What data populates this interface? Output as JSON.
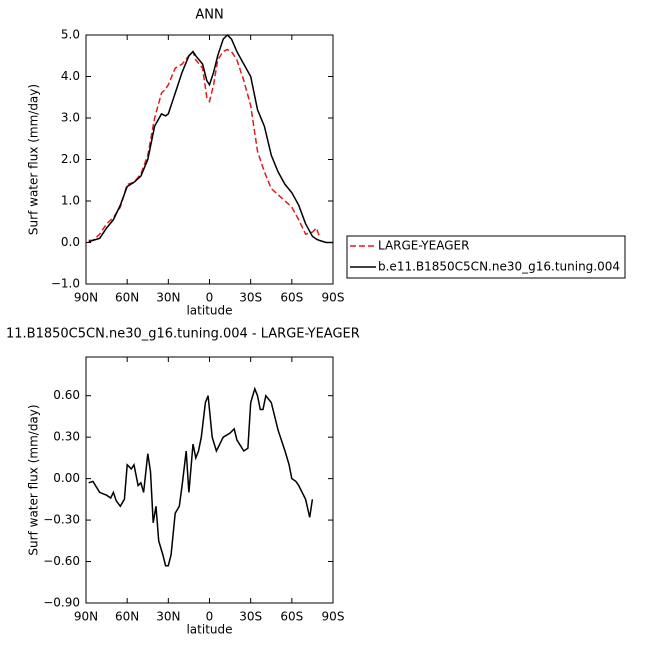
{
  "chart_data": [
    {
      "type": "line",
      "title": "ANN",
      "x_label": "latitude",
      "y_label": "Surf water flux (mm/day)",
      "x": [
        88,
        85,
        80,
        75,
        70,
        65,
        60,
        55,
        50,
        45,
        40,
        35,
        32,
        30,
        25,
        20,
        15,
        12,
        10,
        5,
        2,
        0,
        -3,
        -6,
        -10,
        -13,
        -16,
        -20,
        -25,
        -30,
        -35,
        -40,
        -45,
        -50,
        -55,
        -60,
        -65,
        -70,
        -75,
        -78,
        -80,
        -85,
        -90
      ],
      "series": [
        {
          "name": "LARGE-YEAGER",
          "color": "#e31a1c",
          "linestyle": "dashed",
          "values": [
            0.05,
            0.05,
            0.2,
            0.45,
            0.6,
            0.85,
            1.4,
            1.45,
            1.65,
            2.1,
            3.0,
            3.6,
            3.7,
            3.8,
            4.2,
            4.3,
            4.5,
            4.6,
            4.4,
            4.2,
            3.5,
            3.4,
            3.8,
            4.4,
            4.6,
            4.65,
            4.6,
            4.4,
            3.9,
            3.3,
            2.2,
            1.7,
            1.3,
            1.15,
            1.0,
            0.85,
            0.55,
            0.2,
            0.25,
            0.35,
            0.15,
            null,
            null
          ]
        },
        {
          "name": "b.e11.B1850C5CN.ne30_g16.tuning.004",
          "color": "#000000",
          "linestyle": "solid",
          "values": [
            0.02,
            0.05,
            0.1,
            0.35,
            0.55,
            0.9,
            1.35,
            1.45,
            1.6,
            2.0,
            2.8,
            3.1,
            3.05,
            3.1,
            3.6,
            4.1,
            4.5,
            4.6,
            4.5,
            4.3,
            3.9,
            3.8,
            4.1,
            4.5,
            4.9,
            5.0,
            4.9,
            4.6,
            4.3,
            4.0,
            3.2,
            2.8,
            2.1,
            1.7,
            1.4,
            1.2,
            0.9,
            0.45,
            0.15,
            0.08,
            0.05,
            0.0,
            0.0
          ]
        }
      ],
      "xlim": [
        90,
        -90
      ],
      "xticks": [
        {
          "value": 90,
          "label": "90N"
        },
        {
          "value": 60,
          "label": "60N"
        },
        {
          "value": 30,
          "label": "30N"
        },
        0,
        {
          "value": -30,
          "label": "30S"
        },
        {
          "value": -60,
          "label": "60S"
        },
        {
          "value": -90,
          "label": "90S"
        }
      ],
      "ylim": [
        -1,
        5
      ],
      "yticks": [
        {
          "value": -1,
          "label": "−1.0"
        },
        {
          "value": 0,
          "label": "0.0"
        },
        {
          "value": 1,
          "label": "1.0"
        },
        {
          "value": 2,
          "label": "2.0"
        },
        {
          "value": 3,
          "label": "3.0"
        },
        {
          "value": 4,
          "label": "4.0"
        },
        {
          "value": 5,
          "label": "5.0"
        }
      ],
      "legend": "right"
    },
    {
      "type": "line",
      "title": "11.B1850C5CN.ne30_g16.tuning.004 - LARGE-YEAGER",
      "x_label": "latitude",
      "y_label": "Surf water flux (mm/day)",
      "x": [
        88,
        85,
        80,
        75,
        72,
        70,
        68,
        65,
        62,
        60,
        57,
        55,
        52,
        50,
        48,
        45,
        43,
        41,
        39,
        37,
        34,
        32,
        30,
        28,
        25,
        22,
        20,
        17,
        15,
        12,
        10,
        8,
        6,
        3,
        1,
        -2,
        -5,
        -10,
        -15,
        -18,
        -20,
        -25,
        -28,
        -30,
        -33,
        -35,
        -37,
        -39,
        -41,
        -45,
        -50,
        -55,
        -58,
        -60,
        -63,
        -65,
        -70,
        -73,
        -75
      ],
      "series": [
        {
          "color": "#000000",
          "linestyle": "solid",
          "values": [
            -0.03,
            -0.02,
            -0.1,
            -0.12,
            -0.14,
            -0.1,
            -0.16,
            -0.2,
            -0.15,
            0.1,
            0.07,
            0.1,
            -0.05,
            -0.03,
            -0.1,
            0.18,
            0.05,
            -0.32,
            -0.2,
            -0.45,
            -0.55,
            -0.63,
            -0.63,
            -0.55,
            -0.25,
            -0.2,
            -0.05,
            0.2,
            -0.1,
            0.25,
            0.15,
            0.2,
            0.3,
            0.55,
            0.6,
            0.3,
            0.2,
            0.3,
            0.33,
            0.36,
            0.28,
            0.2,
            0.22,
            0.55,
            0.65,
            0.6,
            0.5,
            0.5,
            0.6,
            0.55,
            0.35,
            0.2,
            0.1,
            0.0,
            -0.02,
            -0.05,
            -0.15,
            -0.28,
            -0.15
          ]
        }
      ],
      "xlim": [
        90,
        -90
      ],
      "xticks": [
        {
          "value": 90,
          "label": "90N"
        },
        {
          "value": 60,
          "label": "60N"
        },
        {
          "value": 30,
          "label": "30N"
        },
        0,
        {
          "value": -30,
          "label": "30S"
        },
        {
          "value": -60,
          "label": "60S"
        },
        {
          "value": -90,
          "label": "90S"
        }
      ],
      "ylim": [
        -0.9,
        0.88
      ],
      "yticks": [
        {
          "value": -0.9,
          "label": "−0.90"
        },
        {
          "value": -0.6,
          "label": "−0.60"
        },
        {
          "value": -0.3,
          "label": "−0.30"
        },
        {
          "value": 0,
          "label": "0.00"
        },
        {
          "value": 0.3,
          "label": "0.30"
        },
        {
          "value": 0.6,
          "label": "0.60"
        }
      ]
    }
  ]
}
